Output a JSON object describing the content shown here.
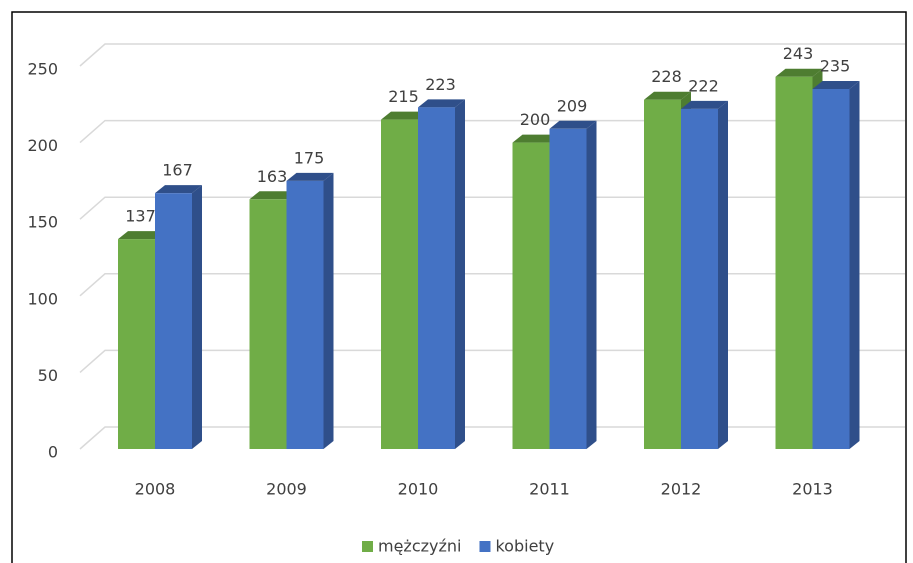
{
  "chart_data": {
    "type": "bar3d",
    "categories": [
      "2008",
      "2009",
      "2010",
      "2011",
      "2012",
      "2013"
    ],
    "series": [
      {
        "name": "mężczyźni",
        "color": "#70ad47",
        "side": "#4e7d31",
        "values": [
          137,
          163,
          215,
          200,
          228,
          243
        ]
      },
      {
        "name": "kobiety",
        "color": "#4472c4",
        "side": "#2f4f8a",
        "values": [
          167,
          175,
          223,
          209,
          222,
          235
        ]
      }
    ],
    "ylim": [
      0,
      250
    ],
    "yticks": [
      0,
      50,
      100,
      150,
      200,
      250
    ],
    "grid": true,
    "legend": "bottom"
  }
}
